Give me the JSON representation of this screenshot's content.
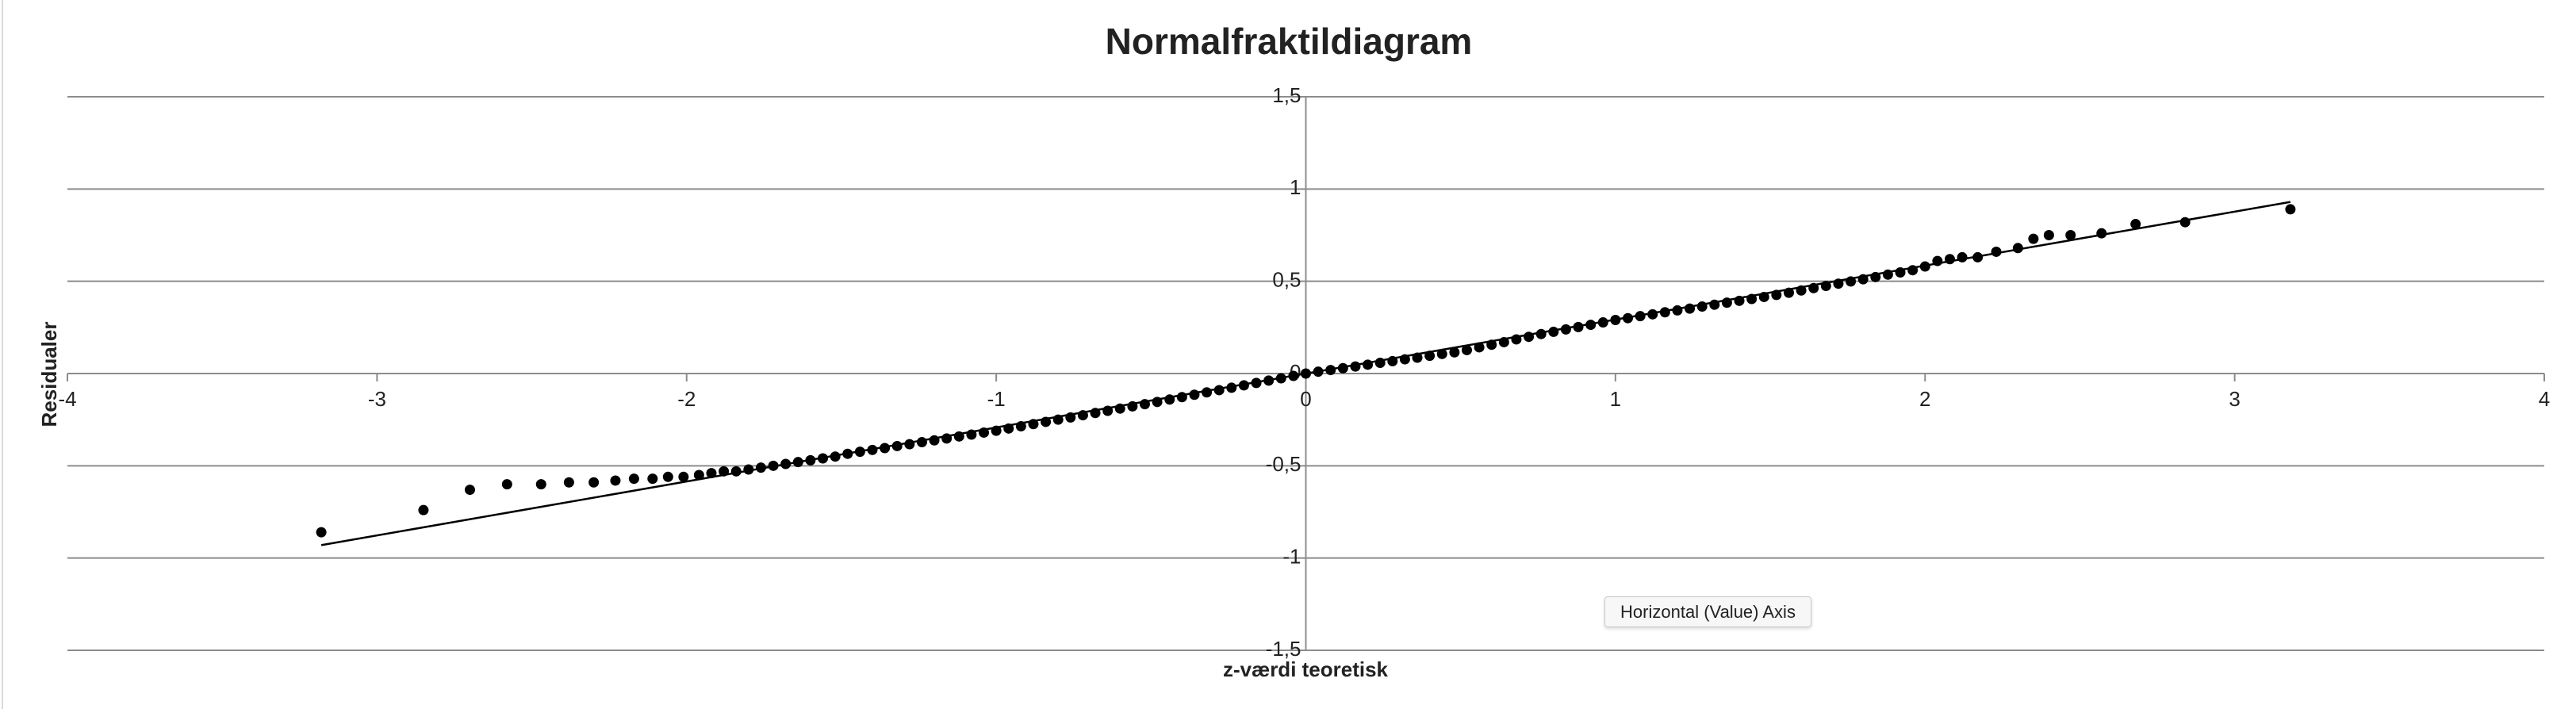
{
  "chart_data": {
    "type": "scatter",
    "title": "Normalfraktildiagram",
    "x_label": "z-værdi teoretisk",
    "y_label": "Residualer",
    "xlim": [
      -4,
      4
    ],
    "xticks": [
      -4,
      -3,
      -2,
      -1,
      0,
      1,
      2,
      3,
      4
    ],
    "ylim": [
      -1.5,
      1.5
    ],
    "yticks": [
      {
        "value": 1.5,
        "label": "1,5"
      },
      1,
      {
        "value": 0.5,
        "label": "0,5"
      },
      0,
      {
        "value": -0.5,
        "label": "-0,5"
      },
      -1,
      {
        "value": -1.5,
        "label": "-1,5"
      }
    ],
    "grid": true,
    "color": "#000000",
    "x": [
      -3.18,
      -2.85,
      -2.7,
      -2.58,
      -2.47,
      -2.38,
      -2.3,
      -2.23,
      -2.17,
      -2.11,
      -2.06,
      -2.01,
      -1.96,
      -1.92,
      -1.88,
      -1.84,
      -1.8,
      -1.76,
      -1.72,
      -1.68,
      -1.64,
      -1.6,
      -1.56,
      -1.52,
      -1.48,
      -1.44,
      -1.4,
      -1.36,
      -1.32,
      -1.28,
      -1.24,
      -1.2,
      -1.16,
      -1.12,
      -1.08,
      -1.04,
      -1.0,
      -0.96,
      -0.92,
      -0.88,
      -0.84,
      -0.8,
      -0.76,
      -0.72,
      -0.68,
      -0.64,
      -0.6,
      -0.56,
      -0.52,
      -0.48,
      -0.44,
      -0.4,
      -0.36,
      -0.32,
      -0.28,
      -0.24,
      -0.2,
      -0.16,
      -0.12,
      -0.08,
      -0.04,
      0,
      0.04,
      0.08,
      0.12,
      0.16,
      0.2,
      0.24,
      0.28,
      0.32,
      0.36,
      0.4,
      0.44,
      0.48,
      0.52,
      0.56,
      0.6,
      0.64,
      0.68,
      0.72,
      0.76,
      0.8,
      0.84,
      0.88,
      0.92,
      0.96,
      1.0,
      1.04,
      1.08,
      1.12,
      1.16,
      1.2,
      1.24,
      1.28,
      1.32,
      1.36,
      1.4,
      1.44,
      1.48,
      1.52,
      1.56,
      1.6,
      1.64,
      1.68,
      1.72,
      1.76,
      1.8,
      1.84,
      1.88,
      1.92,
      1.96,
      2.0,
      2.04,
      2.08,
      2.12,
      2.17,
      2.23,
      2.3,
      2.35,
      2.4,
      2.47,
      2.57,
      2.68,
      2.84,
      3.18
    ],
    "values": [
      -0.86,
      -0.74,
      -0.63,
      -0.6,
      -0.6,
      -0.59,
      -0.59,
      -0.58,
      -0.57,
      -0.57,
      -0.56,
      -0.56,
      -0.55,
      -0.54,
      -0.53,
      -0.53,
      -0.52,
      -0.51,
      -0.5,
      -0.49,
      -0.48,
      -0.47,
      -0.46,
      -0.45,
      -0.435,
      -0.424,
      -0.414,
      -0.404,
      -0.393,
      -0.383,
      -0.372,
      -0.362,
      -0.352,
      -0.341,
      -0.331,
      -0.32,
      -0.31,
      -0.298,
      -0.286,
      -0.274,
      -0.262,
      -0.25,
      -0.238,
      -0.226,
      -0.214,
      -0.202,
      -0.19,
      -0.178,
      -0.166,
      -0.154,
      -0.141,
      -0.128,
      -0.115,
      -0.102,
      -0.09,
      -0.077,
      -0.064,
      -0.051,
      -0.038,
      -0.026,
      -0.013,
      0,
      0.01,
      0.019,
      0.029,
      0.038,
      0.048,
      0.058,
      0.067,
      0.077,
      0.086,
      0.096,
      0.106,
      0.115,
      0.127,
      0.142,
      0.156,
      0.17,
      0.185,
      0.199,
      0.214,
      0.226,
      0.239,
      0.252,
      0.264,
      0.277,
      0.29,
      0.3,
      0.311,
      0.321,
      0.332,
      0.342,
      0.352,
      0.363,
      0.373,
      0.384,
      0.394,
      0.404,
      0.415,
      0.426,
      0.438,
      0.45,
      0.463,
      0.475,
      0.487,
      0.499,
      0.511,
      0.523,
      0.536,
      0.548,
      0.56,
      0.58,
      0.61,
      0.62,
      0.63,
      0.63,
      0.66,
      0.68,
      0.73,
      0.75,
      0.75,
      0.76,
      0.81,
      0.82,
      0.89
    ],
    "trendline": {
      "x": [
        -3.18,
        3.18
      ],
      "values": [
        -0.93,
        0.93
      ]
    }
  },
  "tooltip": "Horizontal (Value) Axis"
}
